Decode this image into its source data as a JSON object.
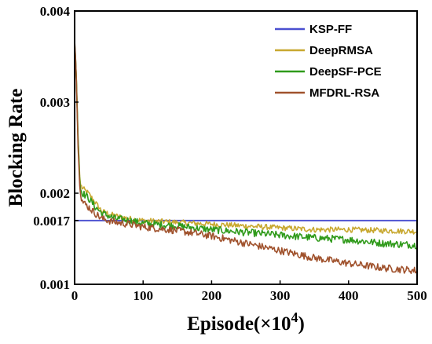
{
  "chart_data": {
    "type": "line",
    "xlabel": "Episode(×10",
    "xlabel_exp": "4",
    "xlabel_close": ")",
    "ylabel": "Blocking Rate",
    "xlim": [
      0,
      500
    ],
    "ylim": [
      0.001,
      0.004
    ],
    "x_ticks": [
      0,
      100,
      200,
      300,
      400,
      500
    ],
    "x_tick_labels": [
      "0",
      "100",
      "200",
      "300",
      "400",
      "500"
    ],
    "y_ticks": [
      0.001,
      0.0017,
      0.002,
      0.003,
      0.004
    ],
    "y_tick_labels": [
      "0.001",
      "0.0017",
      "0.002",
      "0.003",
      "0.004"
    ],
    "legend_position": "top-right",
    "series": [
      {
        "name": "KSP-FF",
        "color": "#4a4fd0",
        "x": [
          0,
          500
        ],
        "y": [
          0.0017,
          0.0017
        ],
        "noise": 0
      },
      {
        "name": "DeepRMSA",
        "color": "#c8a830",
        "x": [
          0,
          2,
          5,
          8,
          12,
          20,
          30,
          40,
          60,
          80,
          100,
          150,
          200,
          250,
          300,
          350,
          400,
          450,
          500
        ],
        "y": [
          0.0036,
          0.0034,
          0.0026,
          0.0021,
          0.00205,
          0.002,
          0.0019,
          0.0018,
          0.00175,
          0.00172,
          0.0017,
          0.00168,
          0.00166,
          0.00164,
          0.00162,
          0.0016,
          0.0016,
          0.00159,
          0.00158
        ],
        "noise": 3e-05
      },
      {
        "name": "DeepSF-PCE",
        "color": "#2f9a1a",
        "x": [
          0,
          2,
          5,
          8,
          12,
          20,
          30,
          40,
          60,
          80,
          100,
          150,
          200,
          250,
          300,
          350,
          400,
          450,
          500
        ],
        "y": [
          0.00365,
          0.0034,
          0.0026,
          0.00205,
          0.002,
          0.00195,
          0.00185,
          0.00178,
          0.00172,
          0.0017,
          0.00167,
          0.00164,
          0.0016,
          0.00157,
          0.00154,
          0.00151,
          0.00149,
          0.00145,
          0.00143
        ],
        "noise": 4e-05
      },
      {
        "name": "MFDRL-RSA",
        "color": "#a0522d",
        "x": [
          0,
          2,
          5,
          8,
          12,
          20,
          30,
          40,
          60,
          80,
          100,
          150,
          200,
          250,
          300,
          350,
          400,
          450,
          500
        ],
        "y": [
          0.00368,
          0.0034,
          0.0025,
          0.002,
          0.0019,
          0.00185,
          0.00178,
          0.00172,
          0.00168,
          0.00166,
          0.00163,
          0.00159,
          0.00153,
          0.00145,
          0.00137,
          0.00129,
          0.00123,
          0.00118,
          0.00115
        ],
        "noise": 4e-05
      }
    ]
  }
}
